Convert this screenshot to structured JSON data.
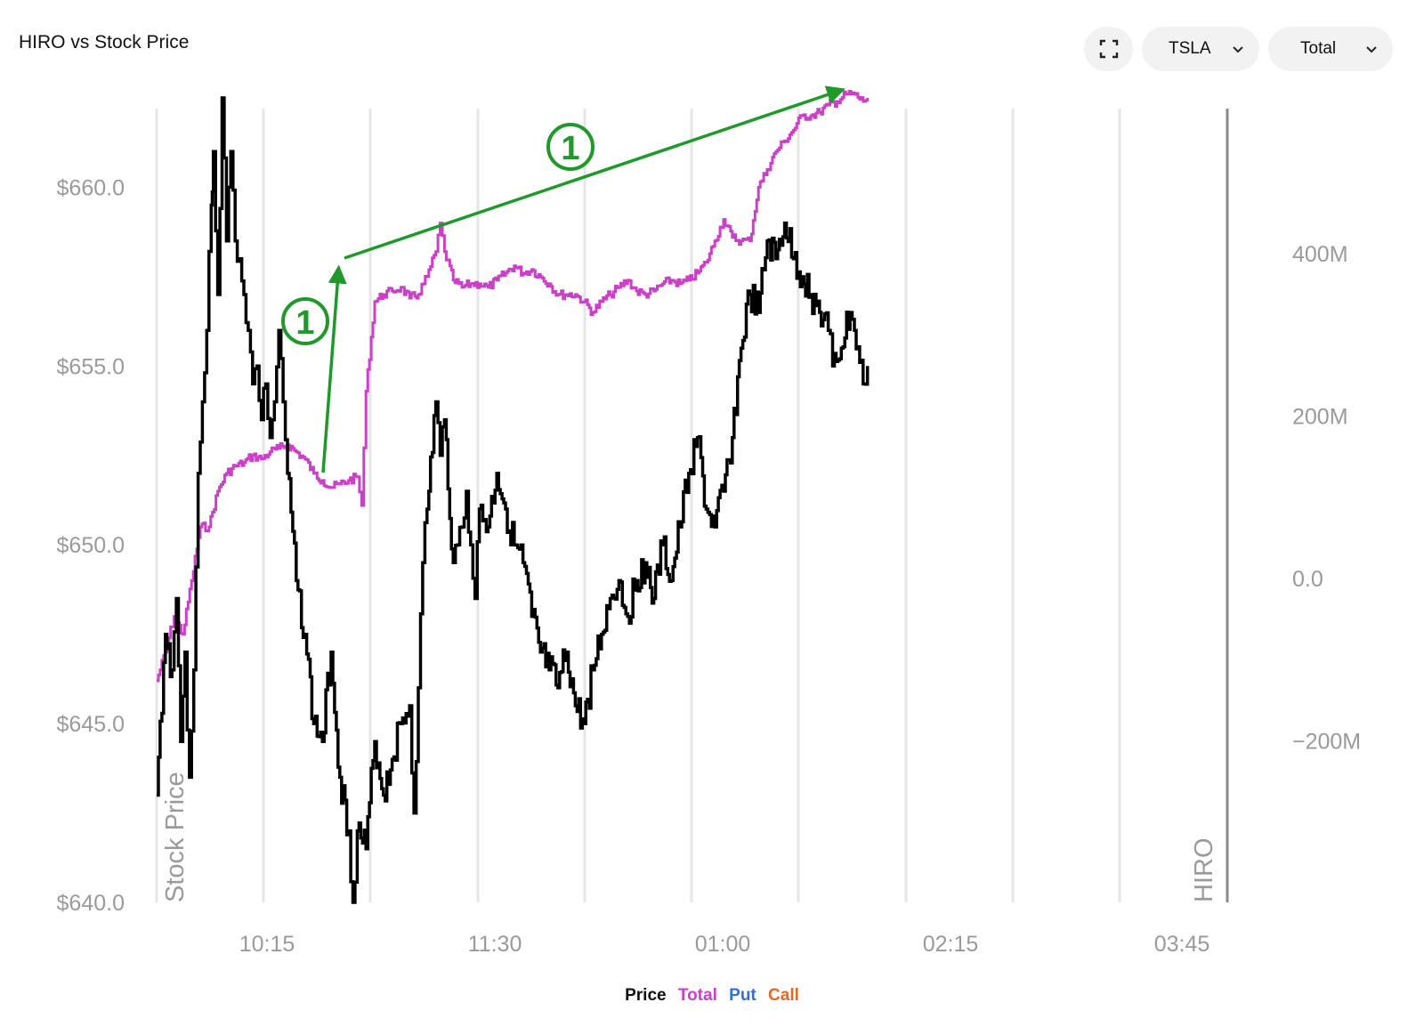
{
  "header": {
    "title": "HIRO vs Stock Price",
    "ticker": "TSLA",
    "mode": "Total"
  },
  "icons": {
    "fullscreen": "fullscreen-icon",
    "dropdown": "chevron-down-icon"
  },
  "legend": {
    "price": "Price",
    "total": "Total",
    "put": "Put",
    "call": "Call"
  },
  "annotations": {
    "marker_label": "1",
    "color": "#1f9a2a"
  },
  "colors": {
    "price": "#000000",
    "total": "#cc3fc8",
    "put": "#2f6fd6",
    "call": "#e46a23",
    "grid": "#e6e6e6",
    "axis_text": "#9a9a9a",
    "annotation": "#1f9a2a"
  },
  "chart_data": {
    "type": "line",
    "title": "HIRO vs Stock Price",
    "x_ticks": [
      "10:15",
      "11:30",
      "01:00",
      "02:15",
      "03:45"
    ],
    "left_axis": {
      "label": "Stock Price",
      "ticks": [
        "$640.0",
        "$645.0",
        "$650.0",
        "$655.0",
        "$660.0"
      ],
      "ylim": [
        640,
        662.5
      ]
    },
    "right_axis": {
      "label": "HIRO",
      "ticks": [
        "−200M",
        "0.0",
        "200M",
        "400M"
      ],
      "ylim": [
        -400,
        600
      ]
    },
    "grid": true,
    "series": [
      {
        "name": "Price",
        "axis": "left",
        "values": [
          [
            0,
            643
          ],
          [
            2,
            647.5
          ],
          [
            3.5,
            646.5
          ],
          [
            4.5,
            648.5
          ],
          [
            5.5,
            644.5
          ],
          [
            6.5,
            647
          ],
          [
            7.5,
            643.5
          ],
          [
            8.5,
            646.5
          ],
          [
            9.5,
            652
          ],
          [
            10.5,
            654
          ],
          [
            11.5,
            656
          ],
          [
            12.5,
            659.5
          ],
          [
            13,
            661
          ],
          [
            14,
            657
          ],
          [
            15,
            662.5
          ],
          [
            16,
            658.5
          ],
          [
            17,
            661
          ],
          [
            18,
            658.5
          ],
          [
            19,
            658
          ],
          [
            20,
            657
          ],
          [
            21,
            656
          ],
          [
            22,
            654.5
          ],
          [
            23,
            655
          ],
          [
            24,
            653.5
          ],
          [
            25,
            654.5
          ],
          [
            26,
            653
          ],
          [
            27,
            654
          ],
          [
            28,
            656
          ],
          [
            29,
            654
          ],
          [
            30,
            652
          ],
          [
            32,
            649
          ],
          [
            34,
            647.5
          ],
          [
            36,
            645
          ],
          [
            38,
            644.5
          ],
          [
            40,
            647
          ],
          [
            42,
            643.5
          ],
          [
            44,
            642
          ],
          [
            45,
            640
          ],
          [
            46,
            642
          ],
          [
            48,
            641.5
          ],
          [
            50,
            644.5
          ],
          [
            52,
            643
          ],
          [
            54,
            644
          ],
          [
            56,
            645
          ],
          [
            58,
            645.5
          ],
          [
            59,
            642.5
          ],
          [
            60,
            646
          ],
          [
            61,
            649.5
          ],
          [
            62,
            651
          ],
          [
            64,
            654
          ],
          [
            65,
            652.5
          ],
          [
            66,
            653.5
          ],
          [
            68,
            649.5
          ],
          [
            69,
            650
          ],
          [
            70,
            650.5
          ],
          [
            71,
            651.5
          ],
          [
            72,
            650
          ],
          [
            73,
            648.5
          ],
          [
            74,
            651
          ],
          [
            76,
            650.5
          ],
          [
            78,
            652
          ],
          [
            80,
            651
          ],
          [
            82,
            650
          ],
          [
            84,
            649.5
          ],
          [
            86,
            648
          ],
          [
            88,
            647
          ],
          [
            90,
            646.5
          ],
          [
            92,
            646
          ],
          [
            94,
            647
          ],
          [
            96,
            645.5
          ],
          [
            98,
            645
          ],
          [
            100,
            646.5
          ],
          [
            102,
            647.5
          ],
          [
            104,
            648.5
          ],
          [
            106,
            649
          ],
          [
            108,
            648
          ],
          [
            110,
            649
          ],
          [
            112,
            649.5
          ],
          [
            114,
            648.5
          ],
          [
            116,
            650
          ],
          [
            118,
            649
          ],
          [
            120,
            650.5
          ],
          [
            122,
            652
          ],
          [
            124,
            653
          ],
          [
            126,
            651
          ],
          [
            128,
            650.5
          ],
          [
            130,
            651.5
          ],
          [
            132,
            653
          ],
          [
            134,
            655.5
          ],
          [
            136,
            657
          ],
          [
            138,
            656.5
          ],
          [
            140,
            658.5
          ],
          [
            142,
            658
          ],
          [
            144,
            659
          ],
          [
            146,
            658
          ],
          [
            148,
            657.5
          ],
          [
            150,
            657
          ],
          [
            152,
            656.5
          ],
          [
            154,
            656
          ],
          [
            155,
            655
          ],
          [
            157,
            655.5
          ],
          [
            159,
            656.5
          ],
          [
            160,
            656
          ],
          [
            162,
            654.5
          ],
          [
            163,
            655
          ]
        ]
      },
      {
        "name": "Total",
        "axis": "left",
        "values": [
          [
            0,
            646.2
          ],
          [
            2,
            647
          ],
          [
            4,
            648
          ],
          [
            6,
            647.5
          ],
          [
            8,
            649
          ],
          [
            10,
            650.5
          ],
          [
            12,
            650.5
          ],
          [
            14,
            651.5
          ],
          [
            16,
            652
          ],
          [
            18,
            652.2
          ],
          [
            20,
            652.3
          ],
          [
            22,
            652.5
          ],
          [
            24,
            652.4
          ],
          [
            26,
            652.6
          ],
          [
            28,
            652.7
          ],
          [
            30,
            652.8
          ],
          [
            32,
            652.6
          ],
          [
            34,
            652.4
          ],
          [
            36,
            652
          ],
          [
            38,
            651.8
          ],
          [
            40,
            651.6
          ],
          [
            42,
            651.7
          ],
          [
            44,
            651.8
          ],
          [
            46,
            651.9
          ],
          [
            47,
            651.1
          ],
          [
            48,
            654.3
          ],
          [
            50,
            656.8
          ],
          [
            52,
            657
          ],
          [
            54,
            657.1
          ],
          [
            56,
            657.2
          ],
          [
            58,
            656.9
          ],
          [
            60,
            657
          ],
          [
            62,
            657.5
          ],
          [
            64,
            658.2
          ],
          [
            65,
            659
          ],
          [
            66,
            658.2
          ],
          [
            68,
            657.4
          ],
          [
            70,
            657.2
          ],
          [
            72,
            657.3
          ],
          [
            74,
            657.3
          ],
          [
            76,
            657.2
          ],
          [
            78,
            657.4
          ],
          [
            80,
            657.6
          ],
          [
            82,
            657.8
          ],
          [
            84,
            657.6
          ],
          [
            86,
            657.7
          ],
          [
            88,
            657.5
          ],
          [
            90,
            657.3
          ],
          [
            92,
            657
          ],
          [
            94,
            657
          ],
          [
            96,
            657
          ],
          [
            98,
            656.8
          ],
          [
            100,
            656.5
          ],
          [
            102,
            656.8
          ],
          [
            104,
            657
          ],
          [
            106,
            657.2
          ],
          [
            108,
            657.4
          ],
          [
            110,
            657.1
          ],
          [
            112,
            657
          ],
          [
            114,
            657.1
          ],
          [
            116,
            657.3
          ],
          [
            118,
            657.4
          ],
          [
            120,
            657.3
          ],
          [
            122,
            657.4
          ],
          [
            124,
            657.6
          ],
          [
            126,
            657.9
          ],
          [
            128,
            658.5
          ],
          [
            130,
            659.1
          ],
          [
            132,
            658.6
          ],
          [
            134,
            658.5
          ],
          [
            136,
            658.5
          ],
          [
            138,
            660
          ],
          [
            140,
            660.5
          ],
          [
            142,
            661
          ],
          [
            144,
            661.3
          ],
          [
            146,
            661.6
          ],
          [
            148,
            662
          ],
          [
            150,
            662
          ],
          [
            152,
            662.1
          ],
          [
            154,
            662.3
          ],
          [
            156,
            662.4
          ],
          [
            158,
            662.6
          ],
          [
            160,
            662.6
          ],
          [
            162,
            662.4
          ],
          [
            163,
            662.5
          ]
        ]
      }
    ]
  }
}
